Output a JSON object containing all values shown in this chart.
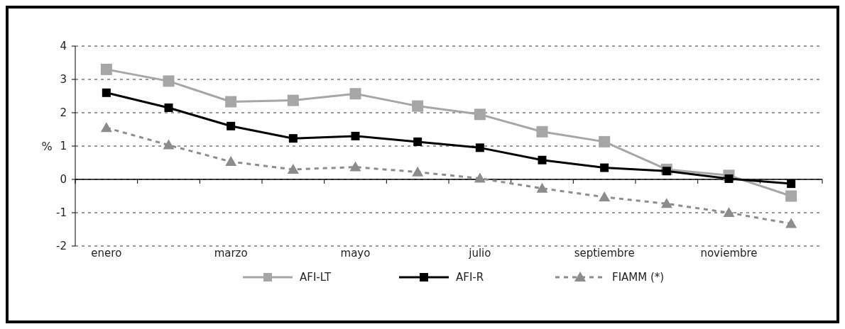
{
  "chart_data": {
    "type": "line",
    "ylabel": "%",
    "categories": [
      "enero",
      null,
      "marzo",
      null,
      "mayo",
      null,
      "julio",
      null,
      "septiembre",
      null,
      "noviembre",
      null
    ],
    "ylim": [
      -2,
      4
    ],
    "yticks": [
      -2,
      -1,
      0,
      1,
      2,
      3,
      4
    ],
    "grid": "y",
    "legend": "bottom",
    "series": [
      {
        "name": "AFI-LT",
        "color": "#a6a6a6",
        "marker": "square",
        "line_style": "solid",
        "values": [
          3.3,
          2.95,
          2.33,
          2.37,
          2.57,
          2.2,
          1.95,
          1.43,
          1.13,
          0.3,
          0.12,
          -0.5
        ]
      },
      {
        "name": "AFI-R",
        "color": "#000000",
        "marker": "square",
        "line_style": "solid",
        "values": [
          2.6,
          2.15,
          1.6,
          1.23,
          1.3,
          1.13,
          0.95,
          0.58,
          0.35,
          0.25,
          0.02,
          -0.13
        ]
      },
      {
        "name": "FIAMM (*)",
        "color": "#8c8c8c",
        "marker": "triangle",
        "line_style": "dashed",
        "values": [
          1.55,
          1.03,
          0.53,
          0.3,
          0.37,
          0.22,
          0.03,
          -0.27,
          -0.53,
          -0.73,
          -1.0,
          -1.33
        ]
      }
    ]
  }
}
